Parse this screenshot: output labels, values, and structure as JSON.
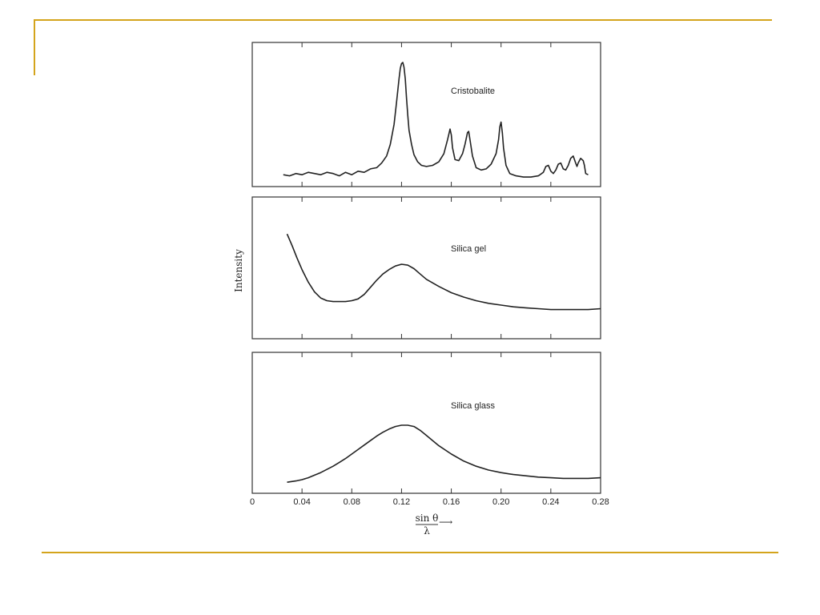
{
  "slide": {
    "accent_color": "#d4a41c"
  },
  "chart_data": {
    "type": "line",
    "ylabel": "Intensity",
    "xlabel": {
      "numerator": "sin θ",
      "denominator": "λ",
      "arrow": "⟶"
    },
    "xlim": [
      0,
      0.28
    ],
    "xticks": [
      0,
      0.04,
      0.08,
      0.12,
      0.16,
      0.2,
      0.24,
      0.28
    ],
    "xtick_labels": [
      "0",
      "0.04",
      "0.08",
      "0.12",
      "0.16",
      "0.20",
      "0.24",
      "0.28"
    ],
    "grid": false,
    "panels": [
      {
        "name": "Cristobalite",
        "ylim": [
          0,
          1
        ],
        "x": [
          0.025,
          0.03,
          0.035,
          0.04,
          0.045,
          0.05,
          0.055,
          0.06,
          0.065,
          0.07,
          0.075,
          0.08,
          0.085,
          0.09,
          0.095,
          0.1,
          0.104,
          0.108,
          0.111,
          0.114,
          0.116,
          0.118,
          0.119,
          0.12,
          0.121,
          0.122,
          0.123,
          0.124,
          0.125,
          0.126,
          0.128,
          0.13,
          0.133,
          0.136,
          0.14,
          0.145,
          0.15,
          0.154,
          0.157,
          0.159,
          0.16,
          0.161,
          0.163,
          0.166,
          0.169,
          0.171,
          0.173,
          0.174,
          0.175,
          0.177,
          0.18,
          0.184,
          0.188,
          0.192,
          0.196,
          0.198,
          0.199,
          0.2,
          0.201,
          0.202,
          0.204,
          0.207,
          0.212,
          0.218,
          0.224,
          0.23,
          0.234,
          0.236,
          0.238,
          0.24,
          0.242,
          0.244,
          0.246,
          0.248,
          0.25,
          0.252,
          0.254,
          0.256,
          0.258,
          0.26,
          0.261,
          0.262,
          0.264,
          0.266,
          0.267,
          0.268,
          0.27
        ],
        "values": [
          0.04,
          0.03,
          0.05,
          0.04,
          0.06,
          0.05,
          0.04,
          0.06,
          0.05,
          0.03,
          0.06,
          0.04,
          0.07,
          0.06,
          0.09,
          0.1,
          0.14,
          0.2,
          0.3,
          0.47,
          0.66,
          0.86,
          0.95,
          0.99,
          1.0,
          0.96,
          0.86,
          0.7,
          0.55,
          0.42,
          0.3,
          0.21,
          0.15,
          0.12,
          0.11,
          0.12,
          0.15,
          0.22,
          0.34,
          0.43,
          0.38,
          0.27,
          0.17,
          0.16,
          0.22,
          0.3,
          0.4,
          0.41,
          0.34,
          0.2,
          0.1,
          0.08,
          0.09,
          0.13,
          0.22,
          0.34,
          0.45,
          0.49,
          0.4,
          0.27,
          0.12,
          0.05,
          0.03,
          0.02,
          0.02,
          0.03,
          0.06,
          0.11,
          0.12,
          0.07,
          0.05,
          0.08,
          0.13,
          0.14,
          0.09,
          0.08,
          0.12,
          0.18,
          0.2,
          0.14,
          0.11,
          0.14,
          0.18,
          0.16,
          0.12,
          0.05,
          0.04
        ]
      },
      {
        "name": "Silica gel",
        "ylim": [
          0,
          1
        ],
        "x": [
          0.028,
          0.032,
          0.036,
          0.04,
          0.045,
          0.05,
          0.055,
          0.06,
          0.065,
          0.07,
          0.075,
          0.08,
          0.085,
          0.09,
          0.095,
          0.1,
          0.105,
          0.11,
          0.115,
          0.12,
          0.125,
          0.13,
          0.135,
          0.14,
          0.15,
          0.16,
          0.17,
          0.18,
          0.19,
          0.2,
          0.21,
          0.22,
          0.23,
          0.24,
          0.25,
          0.26,
          0.27,
          0.28
        ],
        "values": [
          0.98,
          0.85,
          0.71,
          0.58,
          0.44,
          0.33,
          0.26,
          0.23,
          0.22,
          0.22,
          0.22,
          0.23,
          0.25,
          0.3,
          0.38,
          0.46,
          0.53,
          0.58,
          0.62,
          0.64,
          0.63,
          0.59,
          0.53,
          0.47,
          0.39,
          0.32,
          0.27,
          0.23,
          0.2,
          0.18,
          0.16,
          0.15,
          0.14,
          0.13,
          0.13,
          0.13,
          0.13,
          0.14
        ]
      },
      {
        "name": "Silica glass",
        "ylim": [
          0,
          1
        ],
        "x": [
          0.028,
          0.035,
          0.04,
          0.045,
          0.05,
          0.055,
          0.06,
          0.065,
          0.07,
          0.075,
          0.08,
          0.085,
          0.09,
          0.095,
          0.1,
          0.105,
          0.11,
          0.115,
          0.12,
          0.125,
          0.13,
          0.135,
          0.14,
          0.145,
          0.15,
          0.16,
          0.17,
          0.18,
          0.19,
          0.2,
          0.21,
          0.22,
          0.23,
          0.24,
          0.25,
          0.26,
          0.27,
          0.28
        ],
        "values": [
          0.06,
          0.08,
          0.1,
          0.13,
          0.17,
          0.21,
          0.26,
          0.31,
          0.37,
          0.43,
          0.5,
          0.57,
          0.64,
          0.71,
          0.78,
          0.84,
          0.89,
          0.93,
          0.95,
          0.95,
          0.93,
          0.87,
          0.79,
          0.71,
          0.63,
          0.5,
          0.39,
          0.31,
          0.25,
          0.21,
          0.18,
          0.16,
          0.14,
          0.13,
          0.12,
          0.12,
          0.12,
          0.13
        ]
      }
    ]
  }
}
